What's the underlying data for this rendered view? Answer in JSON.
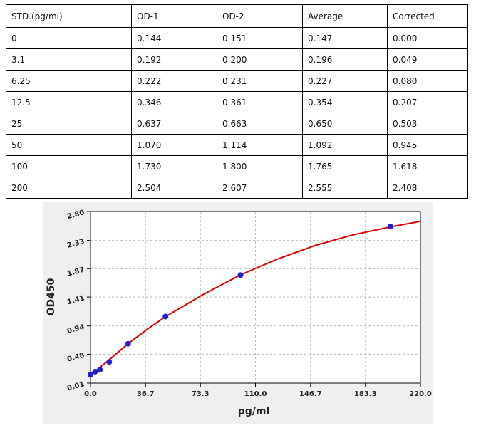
{
  "table": {
    "header": [
      "STD.(pg/ml)",
      "OD-1",
      "OD-2",
      "Average",
      "Corrected"
    ],
    "rows": [
      [
        "0",
        "0.144",
        "0.151",
        "0.147",
        "0.000"
      ],
      [
        "3.1",
        "0.192",
        "0.200",
        "0.196",
        "0.049"
      ],
      [
        "6.25",
        "0.222",
        "0.231",
        "0.227",
        "0.080"
      ],
      [
        "12.5",
        "0.346",
        "0.361",
        "0.354",
        "0.207"
      ],
      [
        "25",
        "0.637",
        "0.663",
        "0.650",
        "0.503"
      ],
      [
        "50",
        "1.070",
        "1.114",
        "1.092",
        "0.945"
      ],
      [
        "100",
        "1.730",
        "1.800",
        "1.765",
        "1.618"
      ],
      [
        "200",
        "2.504",
        "2.607",
        "2.555",
        "2.408"
      ]
    ]
  },
  "chart_data": {
    "type": "scatter",
    "x_label": "pg/ml",
    "y_label": "OD450",
    "x": [
      0,
      3.1,
      6.25,
      12.5,
      25,
      50,
      100,
      200
    ],
    "values": [
      0.147,
      0.196,
      0.227,
      0.354,
      0.65,
      1.092,
      1.765,
      2.555
    ],
    "point_color": "#2020d0",
    "fit_x": [
      0,
      12.5,
      25,
      37.5,
      50,
      75,
      100,
      125,
      150,
      175,
      200,
      220
    ],
    "fit_values": [
      0.14,
      0.39,
      0.65,
      0.88,
      1.09,
      1.45,
      1.77,
      2.03,
      2.25,
      2.42,
      2.55,
      2.64
    ],
    "fit_color": "#e00000",
    "xlim": [
      0,
      220
    ],
    "ylim": [
      0.01,
      2.8
    ],
    "xticks": [
      {
        "value": 0,
        "label": "0.0"
      },
      36.7,
      73.3,
      {
        "value": 110,
        "label": "110.0"
      },
      146.7,
      183.3,
      {
        "value": 220,
        "label": "220.0"
      }
    ],
    "yticks": [
      0.01,
      0.48,
      0.94,
      1.41,
      1.87,
      2.33,
      {
        "value": 2.8,
        "label": "2.80"
      }
    ],
    "grid": true
  }
}
